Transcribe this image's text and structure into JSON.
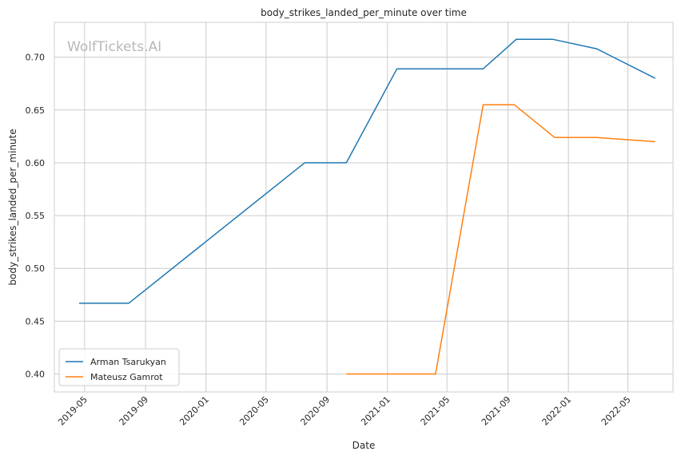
{
  "chart_data": {
    "type": "line",
    "title": "body_strikes_landed_per_minute over time",
    "xlabel": "Date",
    "ylabel": "body_strikes_landed_per_minute",
    "watermark": "WolfTickets.AI",
    "x_range": [
      "2019-03-01",
      "2022-07-31"
    ],
    "ylim": [
      0.383,
      0.733
    ],
    "grid": true,
    "legend_position": "lower-left",
    "x_ticks": [
      "2019-05",
      "2019-09",
      "2020-01",
      "2020-05",
      "2020-09",
      "2021-01",
      "2021-05",
      "2021-09",
      "2022-01",
      "2022-05"
    ],
    "y_ticks": [
      "0.40",
      "0.45",
      "0.50",
      "0.55",
      "0.60",
      "0.65",
      "0.70"
    ],
    "series": [
      {
        "name": "Arman Tsarukyan",
        "color": "#1f77b4",
        "points": [
          {
            "x": "2019-04-20",
            "y": 0.467
          },
          {
            "x": "2019-07-29",
            "y": 0.467
          },
          {
            "x": "2020-07-18",
            "y": 0.6
          },
          {
            "x": "2020-10-10",
            "y": 0.6
          },
          {
            "x": "2021-01-20",
            "y": 0.689
          },
          {
            "x": "2021-07-13",
            "y": 0.689
          },
          {
            "x": "2021-09-18",
            "y": 0.717
          },
          {
            "x": "2021-11-30",
            "y": 0.717
          },
          {
            "x": "2022-02-27",
            "y": 0.708
          },
          {
            "x": "2022-06-25",
            "y": 0.68
          }
        ]
      },
      {
        "name": "Mateusz Gamrot",
        "color": "#ff7f0e",
        "points": [
          {
            "x": "2020-10-10",
            "y": 0.4
          },
          {
            "x": "2021-04-08",
            "y": 0.4
          },
          {
            "x": "2021-07-13",
            "y": 0.655
          },
          {
            "x": "2021-09-14",
            "y": 0.655
          },
          {
            "x": "2021-12-04",
            "y": 0.624
          },
          {
            "x": "2022-02-27",
            "y": 0.624
          },
          {
            "x": "2022-06-25",
            "y": 0.62
          }
        ]
      }
    ]
  }
}
